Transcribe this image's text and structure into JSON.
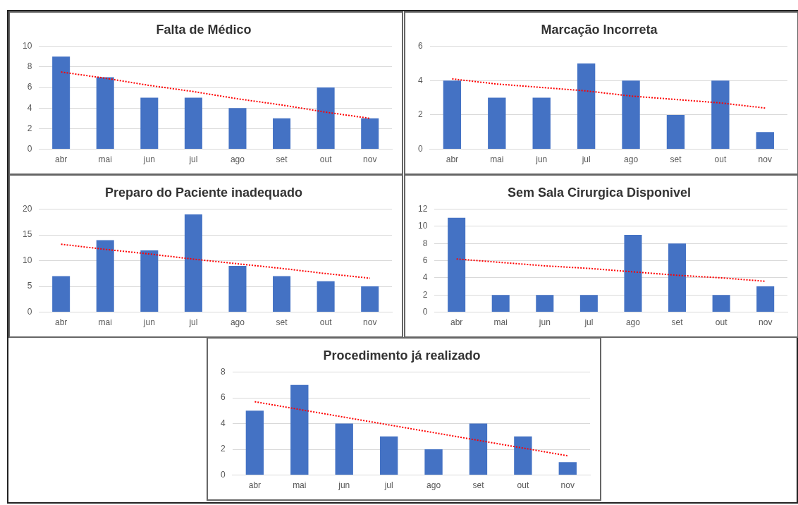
{
  "chart_data": [
    {
      "type": "bar",
      "title": "Falta de Médico",
      "categories": [
        "abr",
        "mai",
        "jun",
        "jul",
        "ago",
        "set",
        "out",
        "nov"
      ],
      "ylim": [
        0,
        10
      ],
      "yticks": [
        0,
        2,
        4,
        6,
        8,
        10
      ],
      "grid": "y",
      "legend": false,
      "series": [
        {
          "color": "#4472c4",
          "values": [
            9,
            7,
            5,
            5,
            4,
            3,
            6,
            3
          ]
        },
        {
          "type": "line",
          "color": "#ff0000",
          "line_style": "dotted",
          "marker": "none",
          "values": [
            7.5,
            6.9,
            6.2,
            5.6,
            4.9,
            4.3,
            3.6,
            3.0
          ]
        }
      ]
    },
    {
      "type": "bar",
      "title": "Marcação Incorreta",
      "categories": [
        "abr",
        "mai",
        "jun",
        "jul",
        "ago",
        "set",
        "out",
        "nov"
      ],
      "ylim": [
        0,
        6
      ],
      "yticks": [
        0,
        2,
        4,
        6
      ],
      "grid": "y",
      "legend": false,
      "series": [
        {
          "color": "#4472c4",
          "values": [
            4,
            3,
            3,
            5,
            4,
            2,
            4,
            1
          ]
        },
        {
          "type": "line",
          "color": "#ff0000",
          "line_style": "dotted",
          "marker": "none",
          "values": [
            4.1,
            3.8,
            3.6,
            3.4,
            3.1,
            2.9,
            2.7,
            2.4
          ]
        }
      ]
    },
    {
      "type": "bar",
      "title": "Preparo do Paciente inadequado",
      "categories": [
        "abr",
        "mai",
        "jun",
        "jul",
        "ago",
        "set",
        "out",
        "nov"
      ],
      "ylim": [
        0,
        20
      ],
      "yticks": [
        0,
        5,
        10,
        15,
        20
      ],
      "grid": "y",
      "legend": false,
      "series": [
        {
          "color": "#4472c4",
          "values": [
            7,
            14,
            12,
            19,
            9,
            7,
            6,
            5
          ]
        },
        {
          "type": "line",
          "color": "#ff0000",
          "line_style": "dotted",
          "marker": "none",
          "values": [
            13.2,
            12.2,
            11.3,
            10.3,
            9.4,
            8.5,
            7.5,
            6.6
          ]
        }
      ]
    },
    {
      "type": "bar",
      "title": "Sem Sala Cirurgica Disponivel",
      "categories": [
        "abr",
        "mai",
        "jun",
        "jul",
        "ago",
        "set",
        "out",
        "nov"
      ],
      "ylim": [
        0,
        12
      ],
      "yticks": [
        0,
        2,
        4,
        6,
        8,
        10,
        12
      ],
      "grid": "y",
      "legend": false,
      "series": [
        {
          "color": "#4472c4",
          "values": [
            11,
            2,
            2,
            2,
            9,
            8,
            2,
            3
          ]
        },
        {
          "type": "line",
          "color": "#ff0000",
          "line_style": "dotted",
          "marker": "none",
          "values": [
            6.2,
            5.8,
            5.4,
            5.1,
            4.7,
            4.3,
            4.0,
            3.6
          ]
        }
      ]
    },
    {
      "type": "bar",
      "title": "Procedimento já realizado",
      "categories": [
        "abr",
        "mai",
        "jun",
        "jul",
        "ago",
        "set",
        "out",
        "nov"
      ],
      "ylim": [
        0,
        8
      ],
      "yticks": [
        0,
        2,
        4,
        6,
        8
      ],
      "grid": "y",
      "legend": false,
      "series": [
        {
          "color": "#4472c4",
          "values": [
            5,
            7,
            4,
            3,
            2,
            4,
            3,
            1
          ]
        },
        {
          "type": "line",
          "color": "#ff0000",
          "line_style": "dotted",
          "marker": "none",
          "values": [
            5.7,
            5.1,
            4.5,
            3.9,
            3.3,
            2.7,
            2.1,
            1.5
          ]
        }
      ]
    }
  ]
}
